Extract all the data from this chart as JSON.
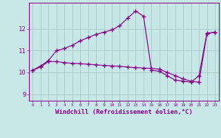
{
  "line1_x": [
    0,
    1,
    2,
    3,
    4,
    5,
    6,
    7,
    8,
    9,
    10,
    11,
    12,
    13,
    14,
    15,
    16,
    17,
    18,
    19,
    20,
    21,
    22,
    23
  ],
  "line1_y": [
    10.1,
    10.3,
    10.55,
    11.0,
    11.1,
    11.25,
    11.45,
    11.6,
    11.75,
    11.85,
    11.95,
    12.15,
    12.5,
    12.82,
    12.58,
    10.1,
    10.05,
    9.85,
    9.65,
    9.6,
    9.55,
    9.85,
    11.8,
    11.85
  ],
  "line2_x": [
    0,
    1,
    2,
    3,
    4,
    5,
    6,
    7,
    8,
    9,
    10,
    11,
    12,
    13,
    14,
    15,
    16,
    17,
    18,
    19,
    20,
    21,
    22,
    23
  ],
  "line2_y": [
    10.1,
    10.25,
    10.5,
    10.5,
    10.45,
    10.42,
    10.4,
    10.38,
    10.35,
    10.32,
    10.3,
    10.28,
    10.25,
    10.22,
    10.2,
    10.18,
    10.15,
    10.0,
    9.85,
    9.7,
    9.6,
    9.55,
    11.78,
    11.85
  ],
  "line_color": "#880088",
  "marker": "+",
  "markersize": 4,
  "markeredgewidth": 1.0,
  "linewidth": 0.9,
  "xlabel": "Windchill (Refroidissement éolien,°C)",
  "xlabel_fontsize": 6.5,
  "xtick_labels": [
    "0",
    "1",
    "2",
    "3",
    "4",
    "5",
    "6",
    "7",
    "8",
    "9",
    "10",
    "11",
    "12",
    "13",
    "14",
    "15",
    "16",
    "17",
    "18",
    "19",
    "20",
    "21",
    "22",
    "23"
  ],
  "ytick_labels": [
    "9",
    "10",
    "11",
    "12"
  ],
  "yticks": [
    9,
    10,
    11,
    12
  ],
  "xlim": [
    -0.5,
    23.5
  ],
  "ylim": [
    8.7,
    13.2
  ],
  "bg_color": "#c8e8e8",
  "grid_color": "#aacccc",
  "tick_color": "#880088",
  "label_color": "#880088"
}
